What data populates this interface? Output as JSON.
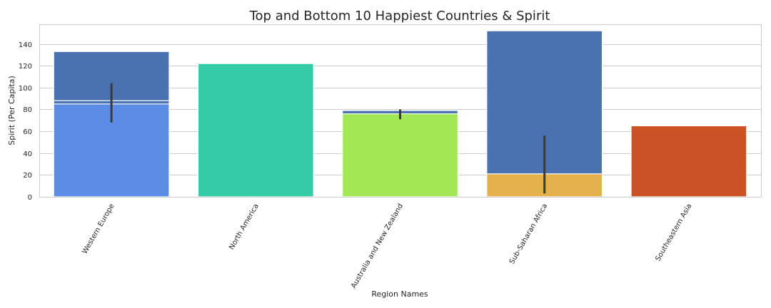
{
  "chart_data": {
    "type": "bar",
    "title": "Top and Bottom 10 Happiest Countries & Spirit",
    "xlabel": "Region Names",
    "ylabel": "Spirit (Per Capita)",
    "ylim": [
      0,
      158
    ],
    "yticks": [
      0,
      20,
      40,
      60,
      80,
      100,
      120,
      140
    ],
    "grid": "horizontal",
    "categories": [
      "Western Europe",
      "North America",
      "Australia and New Zealand",
      "Sub-Saharan Africa",
      "Southeastern Asia"
    ],
    "series": [
      {
        "color": "#4a72b0",
        "values": [
          133,
          null,
          79,
          152,
          null
        ],
        "error_low": [
          null,
          null,
          null,
          null,
          null
        ],
        "error_high": [
          null,
          null,
          null,
          null,
          null
        ]
      },
      {
        "color": "#4a72b0",
        "values": [
          88,
          null,
          null,
          null,
          null
        ],
        "error_low": [
          null,
          null,
          null,
          null,
          null
        ],
        "error_high": [
          null,
          null,
          null,
          null,
          null
        ]
      },
      {
        "color": "#5b8ce6",
        "values": [
          85,
          null,
          null,
          null,
          null
        ],
        "error_low": [
          68,
          null,
          null,
          null,
          null
        ],
        "error_high": [
          104,
          null,
          null,
          null,
          null
        ]
      },
      {
        "color": "#34cca7",
        "values": [
          null,
          122,
          null,
          null,
          null
        ],
        "error_low": [
          null,
          null,
          null,
          null,
          null
        ],
        "error_high": [
          null,
          null,
          null,
          null,
          null
        ]
      },
      {
        "color": "#a1e854",
        "values": [
          null,
          null,
          76,
          null,
          null
        ],
        "error_low": [
          null,
          null,
          71,
          null,
          null
        ],
        "error_high": [
          null,
          null,
          80,
          null,
          null
        ]
      },
      {
        "color": "#e3b04c",
        "values": [
          null,
          null,
          null,
          21,
          null
        ],
        "error_low": [
          null,
          null,
          null,
          3,
          null
        ],
        "error_high": [
          null,
          null,
          null,
          56,
          null
        ]
      },
      {
        "color": "#cb5225",
        "values": [
          null,
          null,
          null,
          null,
          65
        ],
        "error_low": [
          null,
          null,
          null,
          null,
          null
        ],
        "error_high": [
          null,
          null,
          null,
          null,
          null
        ]
      }
    ]
  }
}
